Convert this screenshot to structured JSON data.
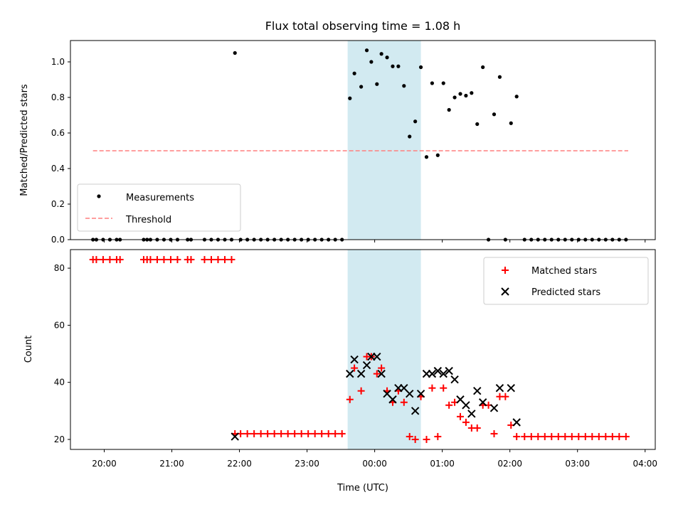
{
  "chart_data": [
    {
      "type": "scatter",
      "title": "Flux total observing time = 1.08 h",
      "xlabel": "",
      "ylabel": "Matched/Predicted stars",
      "xlim": [
        "19:30",
        "04:09"
      ],
      "ylim": [
        0,
        1.12
      ],
      "yticks": [
        "0.0",
        "0.2",
        "0.4",
        "0.6",
        "0.8",
        "1.0"
      ],
      "highlight_span": {
        "start": "23:36",
        "end": "00:41",
        "color": "#add8e6"
      },
      "threshold": {
        "name": "Threshold",
        "y": 0.5,
        "x": [
          "19:50",
          "03:45"
        ],
        "color": "#ff7f7f"
      },
      "legend": {
        "location": "lower-left",
        "entries": [
          "Measurements",
          "Threshold"
        ]
      },
      "series": [
        {
          "name": "Measurements",
          "color": "#000000",
          "points": [
            [
              "19:50",
              0
            ],
            [
              "19:53",
              0
            ],
            [
              "19:59",
              0
            ],
            [
              "20:05",
              0
            ],
            [
              "20:11",
              0
            ],
            [
              "20:14",
              0
            ],
            [
              "20:35",
              0
            ],
            [
              "20:38",
              0
            ],
            [
              "20:41",
              0
            ],
            [
              "20:47",
              0
            ],
            [
              "20:53",
              0
            ],
            [
              "20:59",
              0
            ],
            [
              "21:05",
              0
            ],
            [
              "21:14",
              0
            ],
            [
              "21:17",
              0
            ],
            [
              "21:29",
              0
            ],
            [
              "21:35",
              0
            ],
            [
              "21:41",
              0
            ],
            [
              "21:47",
              0
            ],
            [
              "21:53",
              0
            ],
            [
              "21:56",
              1.05
            ],
            [
              "22:01",
              0
            ],
            [
              "22:07",
              0
            ],
            [
              "22:13",
              0
            ],
            [
              "22:19",
              0
            ],
            [
              "22:25",
              0
            ],
            [
              "22:31",
              0
            ],
            [
              "22:37",
              0
            ],
            [
              "22:43",
              0
            ],
            [
              "22:49",
              0
            ],
            [
              "22:55",
              0
            ],
            [
              "23:01",
              0
            ],
            [
              "23:07",
              0
            ],
            [
              "23:13",
              0
            ],
            [
              "23:19",
              0
            ],
            [
              "23:25",
              0
            ],
            [
              "23:31",
              0
            ],
            [
              "23:38",
              0.795
            ],
            [
              "23:42",
              0.935
            ],
            [
              "23:48",
              0.86
            ],
            [
              "23:53",
              1.065
            ],
            [
              "23:57",
              1.0
            ],
            [
              "00:02",
              0.875
            ],
            [
              "00:06",
              1.045
            ],
            [
              "00:11",
              1.025
            ],
            [
              "00:16",
              0.975
            ],
            [
              "00:21",
              0.975
            ],
            [
              "00:26",
              0.865
            ],
            [
              "00:31",
              0.58
            ],
            [
              "00:36",
              0.665
            ],
            [
              "00:41",
              0.97
            ],
            [
              "00:46",
              0.465
            ],
            [
              "00:51",
              0.88
            ],
            [
              "00:56",
              0.475
            ],
            [
              "01:01",
              0.88
            ],
            [
              "01:06",
              0.73
            ],
            [
              "01:11",
              0.8
            ],
            [
              "01:16",
              0.82
            ],
            [
              "01:21",
              0.81
            ],
            [
              "01:26",
              0.825
            ],
            [
              "01:31",
              0.65
            ],
            [
              "01:36",
              0.97
            ],
            [
              "01:41",
              0
            ],
            [
              "01:46",
              0.705
            ],
            [
              "01:51",
              0.915
            ],
            [
              "01:56",
              0
            ],
            [
              "02:01",
              0.655
            ],
            [
              "02:06",
              0.805
            ],
            [
              "02:13",
              0
            ],
            [
              "02:19",
              0
            ],
            [
              "02:25",
              0
            ],
            [
              "02:31",
              0
            ],
            [
              "02:37",
              0
            ],
            [
              "02:43",
              0
            ],
            [
              "02:49",
              0
            ],
            [
              "02:55",
              0
            ],
            [
              "03:01",
              0
            ],
            [
              "03:07",
              0
            ],
            [
              "03:13",
              0
            ],
            [
              "03:19",
              0
            ],
            [
              "03:25",
              0
            ],
            [
              "03:31",
              0
            ],
            [
              "03:37",
              0
            ],
            [
              "03:43",
              0
            ]
          ]
        }
      ]
    },
    {
      "type": "scatter",
      "title": "",
      "xlabel": "Time (UTC)",
      "ylabel": "Count",
      "xlim": [
        "19:30",
        "04:09"
      ],
      "ylim": [
        16.5,
        86.5
      ],
      "yticks": [
        "20",
        "40",
        "60",
        "80"
      ],
      "xticks": [
        "20:00",
        "21:00",
        "22:00",
        "23:00",
        "00:00",
        "01:00",
        "02:00",
        "03:00",
        "04:00"
      ],
      "highlight_span": {
        "start": "23:36",
        "end": "00:41",
        "color": "#add8e6"
      },
      "legend": {
        "location": "top-right",
        "entries": [
          "Matched stars",
          "Predicted stars"
        ]
      },
      "series": [
        {
          "name": "Matched stars",
          "marker": "plus",
          "color": "#ff0000",
          "points": [
            [
              "19:50",
              83
            ],
            [
              "19:53",
              83
            ],
            [
              "19:59",
              83
            ],
            [
              "20:05",
              83
            ],
            [
              "20:11",
              83
            ],
            [
              "20:14",
              83
            ],
            [
              "20:35",
              83
            ],
            [
              "20:38",
              83
            ],
            [
              "20:41",
              83
            ],
            [
              "20:47",
              83
            ],
            [
              "20:53",
              83
            ],
            [
              "20:59",
              83
            ],
            [
              "21:05",
              83
            ],
            [
              "21:14",
              83
            ],
            [
              "21:17",
              83
            ],
            [
              "21:29",
              83
            ],
            [
              "21:35",
              83
            ],
            [
              "21:41",
              83
            ],
            [
              "21:47",
              83
            ],
            [
              "21:53",
              83
            ],
            [
              "21:56",
              22
            ],
            [
              "22:01",
              22
            ],
            [
              "22:07",
              22
            ],
            [
              "22:13",
              22
            ],
            [
              "22:19",
              22
            ],
            [
              "22:25",
              22
            ],
            [
              "22:31",
              22
            ],
            [
              "22:37",
              22
            ],
            [
              "22:43",
              22
            ],
            [
              "22:49",
              22
            ],
            [
              "22:55",
              22
            ],
            [
              "23:01",
              22
            ],
            [
              "23:07",
              22
            ],
            [
              "23:13",
              22
            ],
            [
              "23:19",
              22
            ],
            [
              "23:25",
              22
            ],
            [
              "23:31",
              22
            ],
            [
              "23:38",
              34
            ],
            [
              "23:42",
              45
            ],
            [
              "23:48",
              37
            ],
            [
              "23:53",
              49
            ],
            [
              "23:57",
              49
            ],
            [
              "00:02",
              43
            ],
            [
              "00:06",
              45
            ],
            [
              "00:11",
              37
            ],
            [
              "00:16",
              33
            ],
            [
              "00:21",
              37
            ],
            [
              "00:26",
              33
            ],
            [
              "00:31",
              21
            ],
            [
              "00:36",
              20
            ],
            [
              "00:41",
              35
            ],
            [
              "00:46",
              20
            ],
            [
              "00:51",
              38
            ],
            [
              "00:56",
              21
            ],
            [
              "01:01",
              38
            ],
            [
              "01:06",
              32
            ],
            [
              "01:11",
              33
            ],
            [
              "01:16",
              28
            ],
            [
              "01:21",
              26
            ],
            [
              "01:26",
              24
            ],
            [
              "01:31",
              24
            ],
            [
              "01:36",
              32
            ],
            [
              "01:41",
              32
            ],
            [
              "01:46",
              22
            ],
            [
              "01:51",
              35
            ],
            [
              "01:56",
              35
            ],
            [
              "02:01",
              25
            ],
            [
              "02:06",
              21
            ],
            [
              "02:13",
              21
            ],
            [
              "02:19",
              21
            ],
            [
              "02:25",
              21
            ],
            [
              "02:31",
              21
            ],
            [
              "02:37",
              21
            ],
            [
              "02:43",
              21
            ],
            [
              "02:49",
              21
            ],
            [
              "02:55",
              21
            ],
            [
              "03:01",
              21
            ],
            [
              "03:07",
              21
            ],
            [
              "03:13",
              21
            ],
            [
              "03:19",
              21
            ],
            [
              "03:25",
              21
            ],
            [
              "03:31",
              21
            ],
            [
              "03:37",
              21
            ],
            [
              "03:43",
              21
            ]
          ]
        },
        {
          "name": "Predicted stars",
          "marker": "x",
          "color": "#000000",
          "points": [
            [
              "21:56",
              21
            ],
            [
              "23:38",
              43
            ],
            [
              "23:42",
              48
            ],
            [
              "23:48",
              43
            ],
            [
              "23:53",
              46
            ],
            [
              "23:57",
              49
            ],
            [
              "00:02",
              49
            ],
            [
              "00:06",
              43
            ],
            [
              "00:11",
              36
            ],
            [
              "00:16",
              34
            ],
            [
              "00:21",
              38
            ],
            [
              "00:26",
              38
            ],
            [
              "00:31",
              36
            ],
            [
              "00:36",
              30
            ],
            [
              "00:41",
              36
            ],
            [
              "00:46",
              43
            ],
            [
              "00:51",
              43
            ],
            [
              "00:56",
              44
            ],
            [
              "01:01",
              43
            ],
            [
              "01:06",
              44
            ],
            [
              "01:11",
              41
            ],
            [
              "01:16",
              34
            ],
            [
              "01:21",
              32
            ],
            [
              "01:26",
              29
            ],
            [
              "01:31",
              37
            ],
            [
              "01:36",
              33
            ],
            [
              "01:46",
              31
            ],
            [
              "01:51",
              38
            ],
            [
              "02:01",
              38
            ],
            [
              "02:06",
              26
            ]
          ]
        }
      ]
    }
  ]
}
